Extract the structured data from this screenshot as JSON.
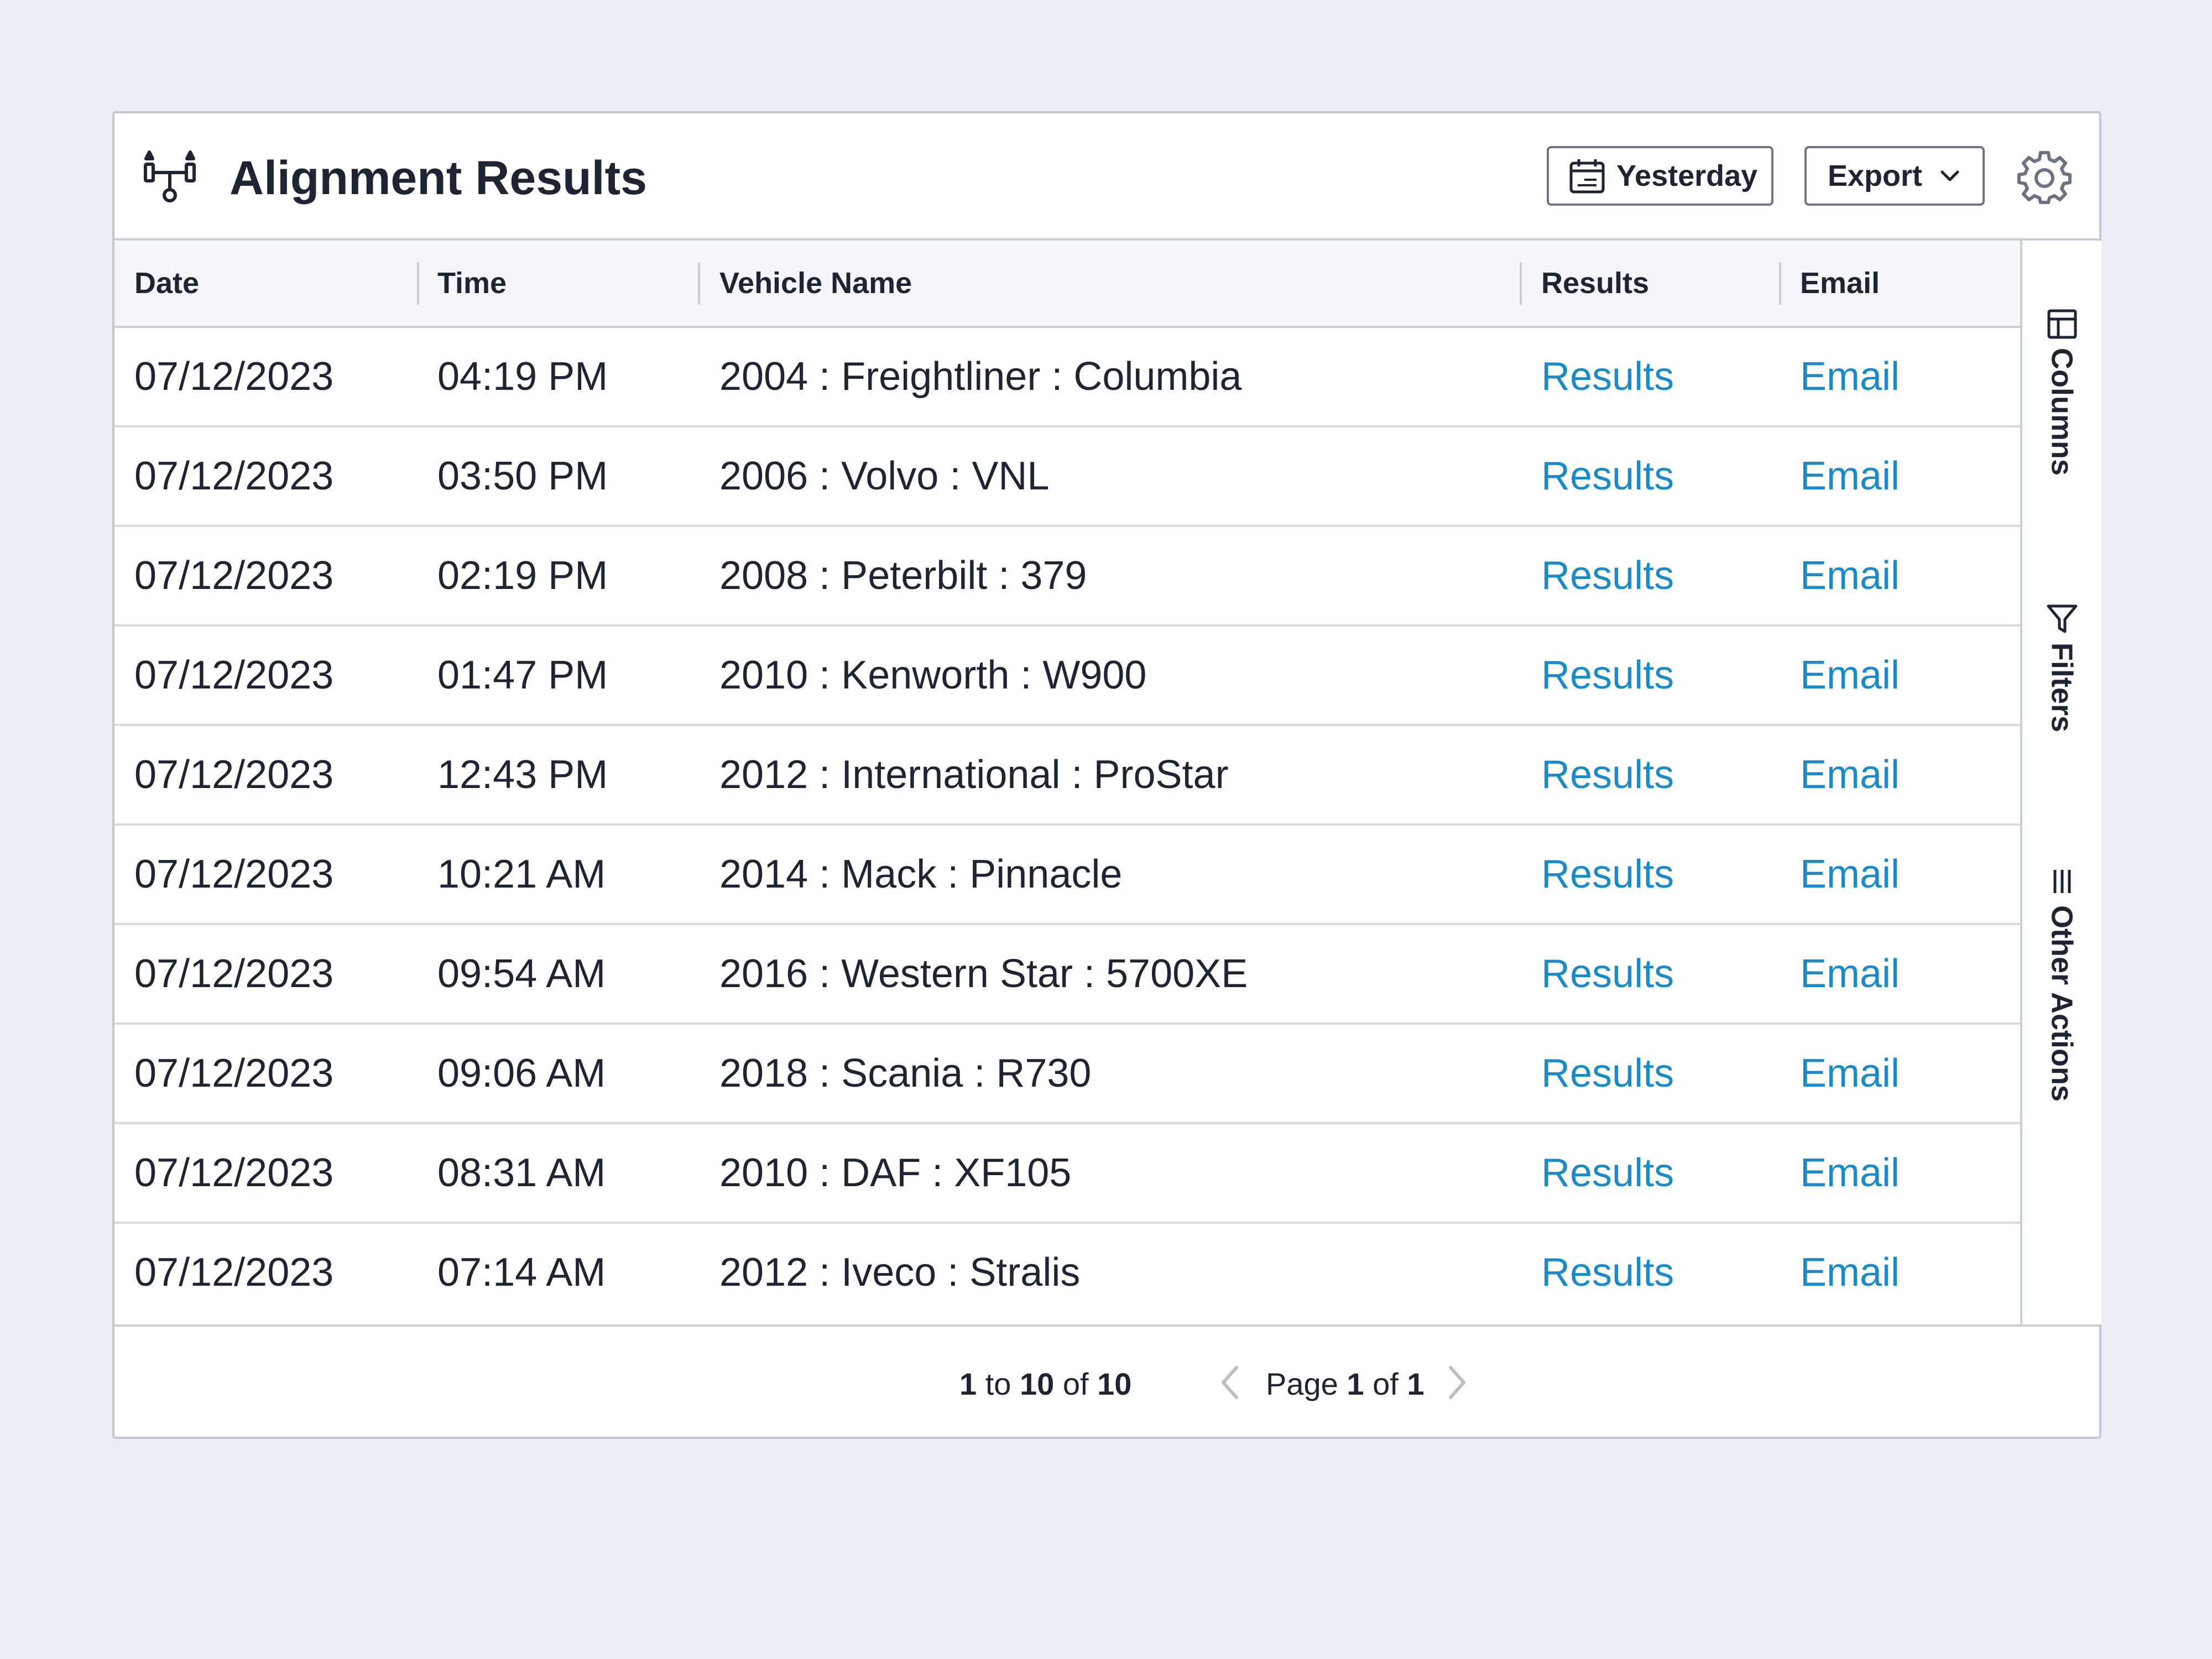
{
  "header": {
    "title": "Alignment Results",
    "icon": "wheel-alignment-icon",
    "date_filter_label": "Yesterday",
    "export_label": "Export",
    "settings_icon": "gear-icon"
  },
  "table": {
    "columns": [
      {
        "key": "date",
        "label": "Date"
      },
      {
        "key": "time",
        "label": "Time"
      },
      {
        "key": "vehicle",
        "label": "Vehicle Name"
      },
      {
        "key": "results",
        "label": "Results"
      },
      {
        "key": "email",
        "label": "Email"
      }
    ],
    "rows": [
      {
        "date": "07/12/2023",
        "time": "04:19 PM",
        "vehicle": "2004 : Freightliner : Columbia",
        "results": "Results",
        "email": "Email"
      },
      {
        "date": "07/12/2023",
        "time": "03:50 PM",
        "vehicle": "2006 : Volvo : VNL",
        "results": "Results",
        "email": "Email"
      },
      {
        "date": "07/12/2023",
        "time": "02:19 PM",
        "vehicle": "2008 : Peterbilt : 379",
        "results": "Results",
        "email": "Email"
      },
      {
        "date": "07/12/2023",
        "time": "01:47 PM",
        "vehicle": "2010 : Kenworth : W900",
        "results": "Results",
        "email": "Email"
      },
      {
        "date": "07/12/2023",
        "time": "12:43 PM",
        "vehicle": "2012 : International : ProStar",
        "results": "Results",
        "email": "Email"
      },
      {
        "date": "07/12/2023",
        "time": "10:21 AM",
        "vehicle": "2014 : Mack : Pinnacle",
        "results": "Results",
        "email": "Email"
      },
      {
        "date": "07/12/2023",
        "time": "09:54 AM",
        "vehicle": "2016 : Western Star : 5700XE",
        "results": "Results",
        "email": "Email"
      },
      {
        "date": "07/12/2023",
        "time": "09:06 AM",
        "vehicle": "2018 : Scania : R730",
        "results": "Results",
        "email": "Email"
      },
      {
        "date": "07/12/2023",
        "time": "08:31 AM",
        "vehicle": "2010 : DAF : XF105",
        "results": "Results",
        "email": "Email"
      },
      {
        "date": "07/12/2023",
        "time": "07:14 AM",
        "vehicle": "2012 : Iveco : Stralis",
        "results": "Results",
        "email": "Email"
      }
    ]
  },
  "sidebar": {
    "columns_label": "Columns",
    "filters_label": "Filters",
    "other_actions_label": "Other Actions"
  },
  "pagination": {
    "from": "1",
    "to_word": "to",
    "to": "10",
    "of_word": "of",
    "total": "10",
    "page_word": "Page",
    "page": "1",
    "page_of_word": "of",
    "page_count": "1"
  },
  "colors": {
    "background": "#eaedf5",
    "link": "#1b8ac8",
    "text": "#1e2532",
    "border": "#c9cdd5"
  }
}
